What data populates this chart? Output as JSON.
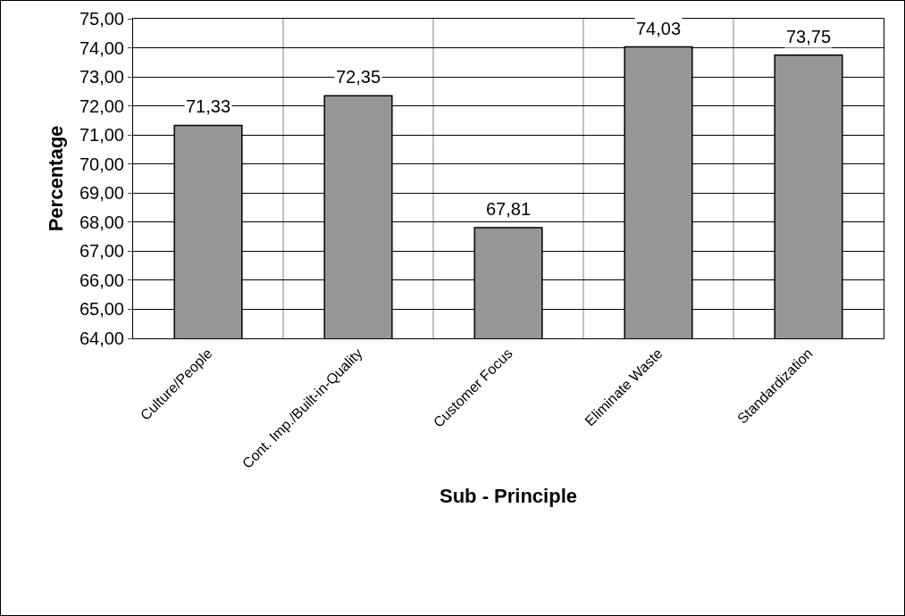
{
  "chart_data": {
    "type": "bar",
    "xlabel": "Sub - Principle",
    "ylabel": "Percentage",
    "categories": [
      "Culture/People",
      "Cont. Imp./Built-in-Quality",
      "Customer Focus",
      "Eliminate Waste",
      "Standardization"
    ],
    "values": [
      71.33,
      72.35,
      67.81,
      74.03,
      73.75
    ],
    "value_labels": [
      "71,33",
      "72,35",
      "67,81",
      "74,03",
      "73,75"
    ],
    "color": "#969696",
    "ylim": [
      64,
      75
    ],
    "yticks": [
      {
        "value": 64,
        "label": "64,00"
      },
      {
        "value": 65,
        "label": "65,00"
      },
      {
        "value": 66,
        "label": "66,00"
      },
      {
        "value": 67,
        "label": "67,00"
      },
      {
        "value": 68,
        "label": "68,00"
      },
      {
        "value": 69,
        "label": "69,00"
      },
      {
        "value": 70,
        "label": "70,00"
      },
      {
        "value": 71,
        "label": "71,00"
      },
      {
        "value": 72,
        "label": "72,00"
      },
      {
        "value": 73,
        "label": "73,00"
      },
      {
        "value": 74,
        "label": "74,00"
      },
      {
        "value": 75,
        "label": "75,00"
      }
    ],
    "grid": true
  }
}
